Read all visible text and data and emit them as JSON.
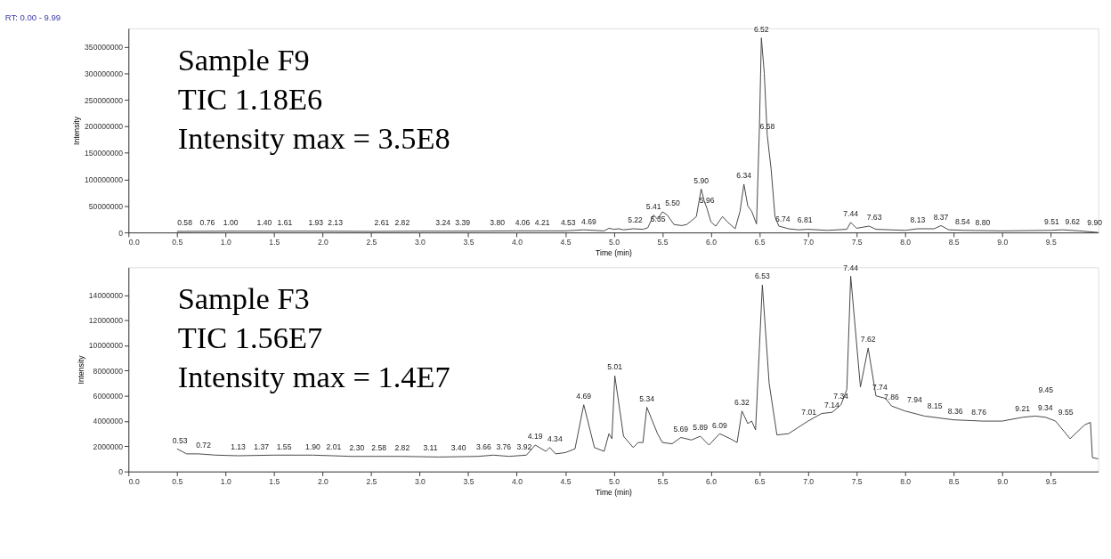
{
  "chart_data": [
    {
      "type": "line",
      "title": "RT: 0.00 - 9.99",
      "xlabel": "Time (min)",
      "ylabel": "Intensity",
      "xlim": [
        0,
        9.99
      ],
      "ylim": [
        0,
        385000000
      ],
      "xticks": [
        {
          "value": 0,
          "label": "0.0"
        },
        0.5,
        {
          "value": 1,
          "label": "1.0"
        },
        1.5,
        {
          "value": 2,
          "label": "2.0"
        },
        2.5,
        {
          "value": 3,
          "label": "3.0"
        },
        3.5,
        {
          "value": 4,
          "label": "4.0"
        },
        4.5,
        {
          "value": 5,
          "label": "5.0"
        },
        5.5,
        {
          "value": 6,
          "label": "6.0"
        },
        6.5,
        {
          "value": 7,
          "label": "7.0"
        },
        7.5,
        {
          "value": 8,
          "label": "8.0"
        },
        8.5,
        {
          "value": 9,
          "label": "9.0"
        },
        9.5
      ],
      "yticks": [
        0,
        50000000,
        100000000,
        150000000,
        200000000,
        250000000,
        300000000,
        350000000
      ],
      "grid": false,
      "marker": "none",
      "line_style": "solid",
      "series": [
        {
          "color": "#404040",
          "x": [
            0.5,
            1.0,
            1.5,
            2.0,
            2.5,
            3.0,
            3.5,
            4.0,
            4.5,
            4.69,
            4.9,
            4.95,
            5.0,
            5.05,
            5.1,
            5.2,
            5.3,
            5.35,
            5.41,
            5.45,
            5.5,
            5.55,
            5.62,
            5.7,
            5.75,
            5.8,
            5.85,
            5.9,
            5.93,
            5.96,
            6.0,
            6.05,
            6.1,
            6.12,
            6.17,
            6.25,
            6.3,
            6.34,
            6.38,
            6.42,
            6.47,
            6.5,
            6.52,
            6.55,
            6.58,
            6.62,
            6.66,
            6.7,
            6.8,
            6.9,
            7.0,
            7.2,
            7.4,
            7.44,
            7.5,
            7.63,
            7.7,
            8.0,
            8.13,
            8.3,
            8.37,
            8.45,
            8.6,
            9.0,
            9.5,
            9.62,
            9.8,
            9.99
          ],
          "values": [
            2000000,
            2500000,
            2500000,
            2500000,
            2000000,
            2500000,
            2500000,
            3000000,
            3000000,
            5000000,
            3000000,
            8000000,
            6000000,
            7000000,
            5000000,
            7000000,
            6000000,
            9000000,
            33000000,
            25000000,
            39000000,
            33000000,
            15000000,
            13000000,
            15000000,
            22000000,
            30000000,
            82000000,
            60000000,
            45000000,
            20000000,
            12000000,
            25000000,
            30000000,
            20000000,
            7000000,
            40000000,
            91000000,
            50000000,
            40000000,
            16000000,
            200000000,
            367000000,
            300000000,
            184000000,
            120000000,
            30000000,
            12000000,
            7000000,
            5000000,
            6000000,
            4000000,
            6000000,
            19000000,
            8000000,
            12000000,
            6000000,
            4000000,
            7000000,
            7000000,
            13000000,
            5000000,
            4000000,
            3000000,
            4000000,
            5000000,
            3000000,
            0
          ]
        }
      ],
      "annotations": [
        "Sample F9",
        "TIC 1.18E6",
        "Intensity max = 3.5E8",
        {
          "text": "0.58",
          "x": 0.58,
          "y": 2000000
        },
        {
          "text": "0.76",
          "x": 0.76,
          "y": 2000000
        },
        {
          "text": "1.00",
          "x": 1.0,
          "y": 2500000
        },
        {
          "text": "1.40",
          "x": 1.4,
          "y": 2500000
        },
        {
          "text": "1.61",
          "x": 1.61,
          "y": 2500000
        },
        {
          "text": "1.93",
          "x": 1.93,
          "y": 2500000
        },
        {
          "text": "2.13",
          "x": 2.13,
          "y": 2500000
        },
        {
          "text": "2.61",
          "x": 2.61,
          "y": 2000000
        },
        {
          "text": "2.82",
          "x": 2.82,
          "y": 2000000
        },
        {
          "text": "3.24",
          "x": 3.24,
          "y": 2500000
        },
        {
          "text": "3.39",
          "x": 3.39,
          "y": 2500000
        },
        {
          "text": "3.80",
          "x": 3.8,
          "y": 2500000
        },
        {
          "text": "4.06",
          "x": 4.06,
          "y": 3000000
        },
        {
          "text": "4.21",
          "x": 4.21,
          "y": 3000000
        },
        {
          "text": "4.53",
          "x": 4.53,
          "y": 3000000
        },
        {
          "text": "4.69",
          "x": 4.69,
          "y": 5000000
        },
        {
          "text": "5.22",
          "x": 5.22,
          "y": 7000000
        },
        {
          "text": "5.35",
          "x": 5.35,
          "y": 9000000
        },
        {
          "text": "5.41",
          "x": 5.41,
          "y": 33000000
        },
        {
          "text": "5.50",
          "x": 5.5,
          "y": 39000000
        },
        {
          "text": "5.90",
          "x": 5.9,
          "y": 82000000
        },
        {
          "text": "5.96",
          "x": 5.96,
          "y": 45000000
        },
        {
          "text": "6.34",
          "x": 6.34,
          "y": 91000000
        },
        {
          "text": "6.52",
          "x": 6.52,
          "y": 367000000
        },
        {
          "text": "6.58",
          "x": 6.58,
          "y": 184000000
        },
        {
          "text": "6.74",
          "x": 6.74,
          "y": 10000000
        },
        {
          "text": "6.81",
          "x": 6.81,
          "y": 7000000
        },
        {
          "text": "7.44",
          "x": 7.44,
          "y": 19000000
        },
        {
          "text": "7.63",
          "x": 7.63,
          "y": 12000000
        },
        {
          "text": "8.13",
          "x": 8.13,
          "y": 7000000
        },
        {
          "text": "8.37",
          "x": 8.37,
          "y": 13000000
        },
        {
          "text": "8.54",
          "x": 8.54,
          "y": 4000000
        },
        {
          "text": "8.80",
          "x": 8.8,
          "y": 3000000
        },
        {
          "text": "9.51",
          "x": 9.51,
          "y": 4000000
        },
        {
          "text": "9.62",
          "x": 9.62,
          "y": 5000000
        },
        {
          "text": "9.90",
          "x": 9.9,
          "y": 3000000
        }
      ]
    },
    {
      "type": "line",
      "xlabel": "Time (min)",
      "ylabel": "Intensity",
      "xlim": [
        0,
        9.99
      ],
      "ylim": [
        0,
        16200000
      ],
      "xticks": [
        {
          "value": 0,
          "label": "0.0"
        },
        0.5,
        {
          "value": 1,
          "label": "1.0"
        },
        1.5,
        {
          "value": 2,
          "label": "2.0"
        },
        2.5,
        {
          "value": 3,
          "label": "3.0"
        },
        3.5,
        {
          "value": 4,
          "label": "4.0"
        },
        4.5,
        {
          "value": 5,
          "label": "5.0"
        },
        5.5,
        {
          "value": 6,
          "label": "6.0"
        },
        6.5,
        {
          "value": 7,
          "label": "7.0"
        },
        7.5,
        {
          "value": 8,
          "label": "8.0"
        },
        8.5,
        {
          "value": 9,
          "label": "9.0"
        },
        9.5
      ],
      "yticks": [
        0,
        2000000,
        4000000,
        6000000,
        8000000,
        10000000,
        12000000,
        14000000
      ],
      "grid": false,
      "marker": "none",
      "line_style": "solid",
      "series": [
        {
          "color": "#404040",
          "x": [
            0.5,
            0.6,
            0.72,
            0.9,
            1.13,
            1.5,
            1.9,
            2.3,
            2.82,
            3.2,
            3.6,
            3.76,
            3.92,
            4.1,
            4.19,
            4.3,
            4.34,
            4.4,
            4.5,
            4.6,
            4.69,
            4.8,
            4.9,
            4.95,
            4.98,
            5.01,
            5.1,
            5.2,
            5.25,
            5.3,
            5.34,
            5.45,
            5.5,
            5.6,
            5.69,
            5.8,
            5.89,
            5.98,
            6.09,
            6.2,
            6.27,
            6.32,
            6.38,
            6.42,
            6.46,
            6.53,
            6.6,
            6.68,
            6.8,
            7.0,
            7.14,
            7.25,
            7.34,
            7.4,
            7.44,
            7.54,
            7.62,
            7.7,
            7.8,
            7.86,
            8.0,
            8.2,
            8.5,
            8.8,
            9.0,
            9.21,
            9.34,
            9.45,
            9.55,
            9.7,
            9.85,
            9.91,
            9.93,
            9.99
          ],
          "values": [
            1800000,
            1400000,
            1400000,
            1300000,
            1250000,
            1300000,
            1300000,
            1200000,
            1200000,
            1150000,
            1200000,
            1300000,
            1200000,
            1300000,
            2100000,
            1600000,
            1900000,
            1400000,
            1500000,
            1800000,
            5300000,
            1900000,
            1600000,
            3000000,
            2600000,
            7600000,
            2800000,
            1900000,
            2300000,
            2300000,
            5100000,
            3000000,
            2300000,
            2200000,
            2700000,
            2500000,
            2800000,
            2100000,
            3000000,
            2600000,
            2300000,
            4800000,
            3800000,
            4000000,
            3300000,
            14800000,
            7000000,
            2900000,
            3000000,
            4000000,
            4600000,
            4700000,
            5300000,
            6500000,
            15500000,
            6700000,
            9800000,
            6000000,
            5800000,
            5200000,
            4800000,
            4400000,
            4100000,
            4000000,
            4000000,
            4300000,
            4400000,
            4300000,
            4000000,
            2600000,
            3700000,
            3900000,
            1100000,
            1000000
          ]
        }
      ],
      "annotations": [
        "Sample F3",
        "TIC 1.56E7",
        "Intensity max = 1.4E7",
        {
          "text": "0.53",
          "x": 0.53,
          "y": 1800000
        },
        {
          "text": "0.72",
          "x": 0.72,
          "y": 1400000
        },
        {
          "text": "1.13",
          "x": 1.13,
          "y": 1250000
        },
        {
          "text": "1.37",
          "x": 1.37,
          "y": 1250000
        },
        {
          "text": "1.55",
          "x": 1.55,
          "y": 1250000
        },
        {
          "text": "1.90",
          "x": 1.9,
          "y": 1250000
        },
        {
          "text": "2.01",
          "x": 2.01,
          "y": 1250000
        },
        {
          "text": "2.30",
          "x": 2.3,
          "y": 1200000
        },
        {
          "text": "2.58",
          "x": 2.58,
          "y": 1200000
        },
        {
          "text": "2.82",
          "x": 2.82,
          "y": 1200000
        },
        {
          "text": "3.11",
          "x": 3.11,
          "y": 1200000
        },
        {
          "text": "3.40",
          "x": 3.4,
          "y": 1200000
        },
        {
          "text": "3.66",
          "x": 3.66,
          "y": 1250000
        },
        {
          "text": "3.76",
          "x": 3.76,
          "y": 1300000
        },
        {
          "text": "3.92",
          "x": 3.92,
          "y": 1250000
        },
        {
          "text": "4.19",
          "x": 4.19,
          "y": 2100000
        },
        {
          "text": "4.34",
          "x": 4.34,
          "y": 1900000
        },
        {
          "text": "4.69",
          "x": 4.69,
          "y": 5300000
        },
        {
          "text": "5.01",
          "x": 5.01,
          "y": 7600000
        },
        {
          "text": "5.34",
          "x": 5.34,
          "y": 5100000
        },
        {
          "text": "5.69",
          "x": 5.69,
          "y": 2700000
        },
        {
          "text": "5.89",
          "x": 5.89,
          "y": 2800000
        },
        {
          "text": "6.09",
          "x": 6.09,
          "y": 3000000
        },
        {
          "text": "6.32",
          "x": 6.32,
          "y": 4800000
        },
        {
          "text": "6.53",
          "x": 6.53,
          "y": 14800000
        },
        {
          "text": "7.01",
          "x": 7.01,
          "y": 4000000
        },
        {
          "text": "7.14",
          "x": 7.14,
          "y": 4600000
        },
        {
          "text": "7.34",
          "x": 7.34,
          "y": 5300000
        },
        {
          "text": "7.44",
          "x": 7.44,
          "y": 15500000
        },
        {
          "text": "7.62",
          "x": 7.62,
          "y": 9800000
        },
        {
          "text": "7.74",
          "x": 7.74,
          "y": 6000000
        },
        {
          "text": "7.86",
          "x": 7.86,
          "y": 5200000
        },
        {
          "text": "7.94",
          "x": 7.94,
          "y": 5000000
        },
        {
          "text": "8.15",
          "x": 8.15,
          "y": 4500000
        },
        {
          "text": "8.36",
          "x": 8.36,
          "y": 4100000
        },
        {
          "text": "8.76",
          "x": 8.76,
          "y": 4000000
        },
        {
          "text": "9.21",
          "x": 9.21,
          "y": 4300000
        },
        {
          "text": "9.34",
          "x": 9.34,
          "y": 4400000
        },
        {
          "text": "9.45",
          "x": 9.45,
          "y": 4300000
        },
        {
          "text": "9.55",
          "x": 9.55,
          "y": 4000000
        }
      ]
    }
  ]
}
